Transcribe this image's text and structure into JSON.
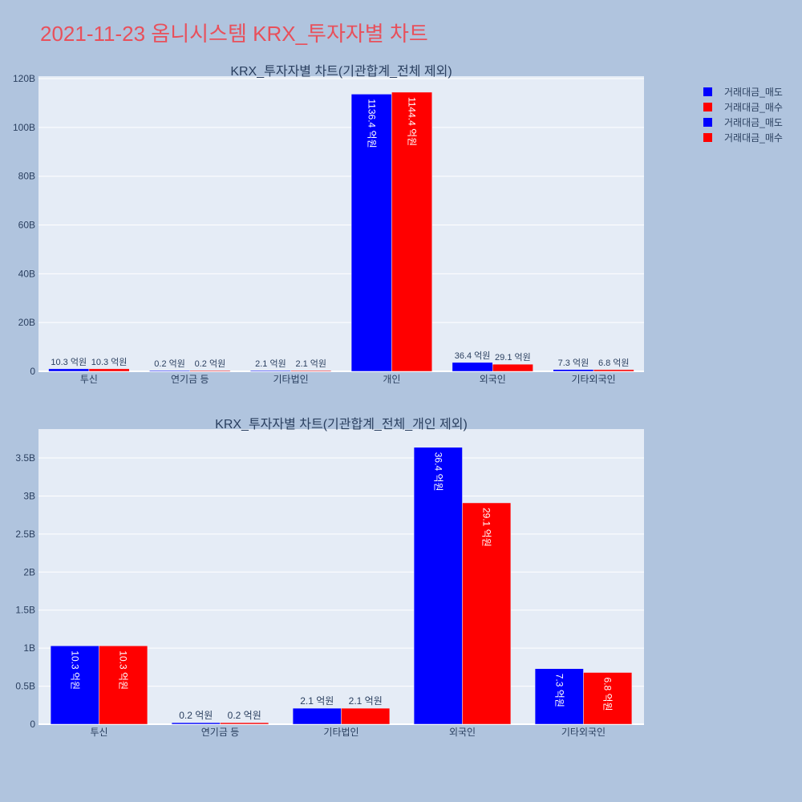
{
  "page_title": "2021-11-23 옴니시스템 KRX_투자자별 차트",
  "legend": [
    {
      "label": "거래대금_매도",
      "color": "#0000ff"
    },
    {
      "label": "거래대금_매수",
      "color": "#ff0000"
    },
    {
      "label": "거래대금_매도",
      "color": "#0000ff"
    },
    {
      "label": "거래대금_매수",
      "color": "#ff0000"
    }
  ],
  "chart_data": [
    {
      "type": "bar",
      "title": "KRX_투자자별 차트(기관합계_전체 제외)",
      "categories": [
        "투신",
        "연기금 등",
        "기타법인",
        "개인",
        "외국인",
        "기타외국인"
      ],
      "series": [
        {
          "name": "거래대금_매도",
          "color": "#0000ff",
          "values": [
            1.03,
            0.02,
            0.21,
            113.64,
            3.64,
            0.73
          ],
          "labels": [
            "10.3 억원",
            "0.2 억원",
            "2.1 억원",
            "1136.4 억원",
            "36.4 억원",
            "7.3 억원"
          ]
        },
        {
          "name": "거래대금_매수",
          "color": "#ff0000",
          "values": [
            1.03,
            0.02,
            0.21,
            114.44,
            2.91,
            0.68
          ],
          "labels": [
            "10.3 억원",
            "0.2 억원",
            "2.1 억원",
            "1144.4 억원",
            "29.1 억원",
            "6.8 억원"
          ]
        }
      ],
      "ylim": [
        0,
        121
      ],
      "yticks": [
        0,
        20,
        40,
        60,
        80,
        100,
        120
      ],
      "ytick_labels": [
        "0",
        "20B",
        "40B",
        "60B",
        "80B",
        "100B",
        "120B"
      ],
      "grid": true
    },
    {
      "type": "bar",
      "title": "KRX_투자자별 차트(기관합계_전체_개인 제외)",
      "categories": [
        "투신",
        "연기금 등",
        "기타법인",
        "외국인",
        "기타외국인"
      ],
      "series": [
        {
          "name": "거래대금_매도",
          "color": "#0000ff",
          "values": [
            1.03,
            0.02,
            0.21,
            3.64,
            0.73
          ],
          "labels": [
            "10.3 억원",
            "0.2 억원",
            "2.1 억원",
            "36.4 억원",
            "7.3 억원"
          ]
        },
        {
          "name": "거래대금_매수",
          "color": "#ff0000",
          "values": [
            1.03,
            0.02,
            0.21,
            2.91,
            0.68
          ],
          "labels": [
            "10.3 억원",
            "0.2 억원",
            "2.1 억원",
            "29.1 억원",
            "6.8 억원"
          ]
        }
      ],
      "ylim": [
        0,
        3.88
      ],
      "yticks": [
        0,
        0.5,
        1,
        1.5,
        2,
        2.5,
        3,
        3.5
      ],
      "ytick_labels": [
        "0",
        "0.5B",
        "1B",
        "1.5B",
        "2B",
        "2.5B",
        "3B",
        "3.5B"
      ],
      "grid": true
    }
  ]
}
